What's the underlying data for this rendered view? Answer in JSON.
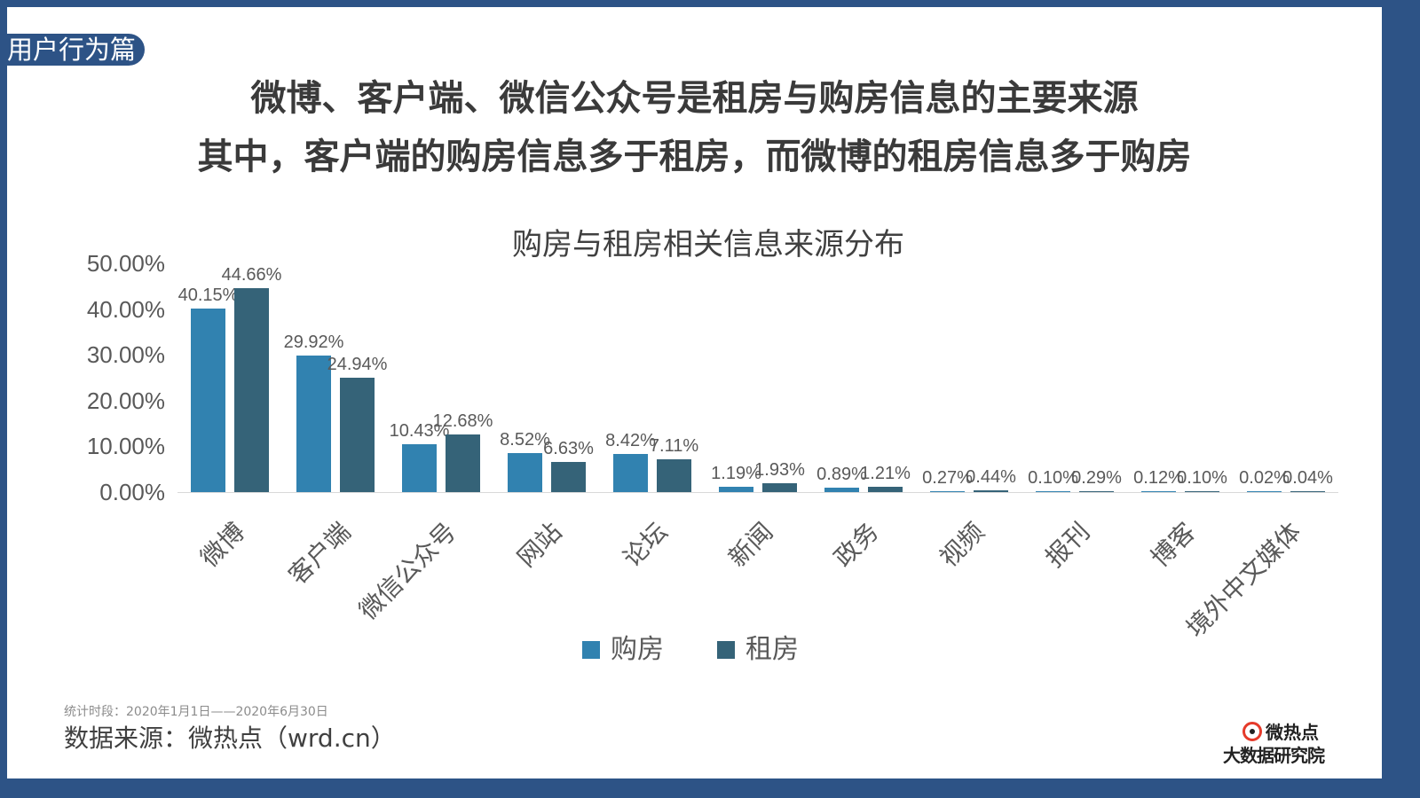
{
  "frame": {
    "border_color": "#2d5386"
  },
  "section_tag": "用户行为篇",
  "headline": {
    "line1": "微博、客户端、微信公众号是租房与购房信息的主要来源",
    "line2": "其中，客户端的购房信息多于租房，而微博的租房信息多于购房"
  },
  "chart_data": {
    "type": "bar",
    "title": "购房与租房相关信息来源分布",
    "xlabel": "",
    "ylabel": "",
    "ylim": [
      0,
      50
    ],
    "yticks": [
      "0.00%",
      "10.00%",
      "20.00%",
      "30.00%",
      "40.00%",
      "50.00%"
    ],
    "grid": false,
    "legend_position": "bottom",
    "categories": [
      "微博",
      "客户端",
      "微信公众号",
      "网站",
      "论坛",
      "新闻",
      "政务",
      "视频",
      "报刊",
      "博客",
      "境外中文媒体"
    ],
    "series": [
      {
        "name": "购房",
        "color": "#3182b0",
        "values": [
          40.15,
          29.92,
          10.43,
          8.52,
          8.42,
          1.19,
          0.89,
          0.27,
          0.1,
          0.12,
          0.02
        ],
        "labels": [
          "40.15%",
          "29.92%",
          "10.43%",
          "8.52%",
          "8.42%",
          "1.19%",
          "0.89%",
          "0.27%",
          "0.10%",
          "0.12%",
          "0.02%"
        ]
      },
      {
        "name": "租房",
        "color": "#356378",
        "values": [
          44.66,
          24.94,
          12.68,
          6.63,
          7.11,
          1.93,
          1.21,
          0.44,
          0.29,
          0.1,
          0.04
        ],
        "labels": [
          "44.66%",
          "24.94%",
          "12.68%",
          "6.63%",
          "7.11%",
          "1.93%",
          "1.21%",
          "0.44%",
          "0.29%",
          "0.10%",
          "0.04%"
        ]
      }
    ]
  },
  "legend": {
    "buy": "购房",
    "rent": "租房"
  },
  "footer": {
    "period": "统计时段：2020年1月1日——2020年6月30日",
    "source": "数据来源：微热点（wrd.cn）"
  },
  "logo": {
    "top": "微热点",
    "bottom": "大数据研究院"
  }
}
